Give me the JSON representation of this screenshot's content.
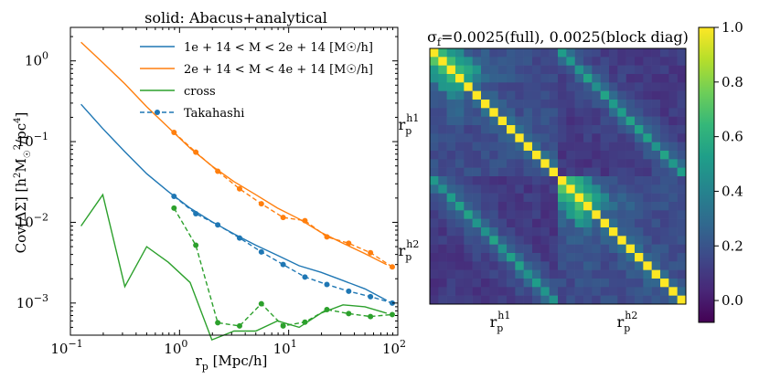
{
  "chart_data": [
    {
      "type": "line",
      "title": "solid: Abacus+analytical",
      "xlabel": "r_p [Mpc/h]",
      "ylabel": "Cov[ΔΣ] [h²M☉²/pc⁴]",
      "xscale": "log",
      "yscale": "log",
      "xlim": [
        0.1,
        100
      ],
      "ylim": [
        0.0004,
        2.6
      ],
      "x_ticks": [
        {
          "v": 0.1,
          "b": "10",
          "e": "−1"
        },
        {
          "v": 1,
          "b": "10",
          "e": "0"
        },
        {
          "v": 10,
          "b": "10",
          "e": "1"
        },
        {
          "v": 100,
          "b": "10",
          "e": "2"
        }
      ],
      "y_ticks": [
        {
          "v": 0.001,
          "b": "10",
          "e": "−3"
        },
        {
          "v": 0.01,
          "b": "10",
          "e": "−2"
        },
        {
          "v": 0.1,
          "b": "10",
          "e": "−1"
        },
        {
          "v": 1,
          "b": "10",
          "e": "0"
        }
      ],
      "legend": [
        {
          "label": "1e + 14 < M < 2e + 14 [M☉/h]",
          "color": "#1f77b4",
          "style": "solid"
        },
        {
          "label": "2e + 14 < M < 4e + 14 [M☉/h]",
          "color": "#ff7f0e",
          "style": "solid"
        },
        {
          "label": "cross",
          "color": "#2ca02c",
          "style": "solid"
        },
        {
          "label": "Takahashi",
          "color": "#1f77b4",
          "style": "dashed"
        }
      ],
      "series": [
        {
          "name": "bin1 analytical",
          "color": "#1f77b4",
          "style": "solid",
          "x": [
            0.125,
            0.198,
            0.315,
            0.5,
            0.79,
            1.25,
            1.98,
            3.15,
            5.0,
            7.9,
            12.5,
            19.8,
            31.5,
            50.0,
            79.0
          ],
          "y": [
            0.29,
            0.145,
            0.075,
            0.04,
            0.024,
            0.015,
            0.0102,
            0.0072,
            0.0052,
            0.0039,
            0.0029,
            0.0024,
            0.0019,
            0.0015,
            0.00108
          ]
        },
        {
          "name": "bin2 analytical",
          "color": "#ff7f0e",
          "style": "solid",
          "x": [
            0.125,
            0.198,
            0.315,
            0.5,
            0.79,
            1.25,
            1.98,
            3.15,
            5.0,
            7.9,
            12.5,
            19.8,
            31.5,
            50.0,
            79.0
          ],
          "y": [
            1.7,
            0.95,
            0.52,
            0.27,
            0.15,
            0.083,
            0.05,
            0.032,
            0.022,
            0.015,
            0.011,
            0.0075,
            0.0055,
            0.0041,
            0.003
          ]
        },
        {
          "name": "cross analytical",
          "color": "#2ca02c",
          "style": "solid",
          "x": [
            0.125,
            0.198,
            0.315,
            0.5,
            0.79,
            1.25,
            1.98,
            3.15,
            5.0,
            7.9,
            12.5,
            19.8,
            31.5,
            50.0,
            79.0
          ],
          "y": [
            0.009,
            0.022,
            0.0016,
            0.005,
            0.0032,
            0.0018,
            0.00035,
            0.00045,
            0.00045,
            0.0006,
            0.0005,
            0.00075,
            0.00095,
            0.0009,
            0.00075
          ]
        },
        {
          "name": "bin1 Takahashi",
          "color": "#1f77b4",
          "style": "dashed",
          "markers": true,
          "x": [
            0.89,
            1.41,
            2.24,
            3.55,
            5.62,
            8.9,
            14.1,
            22.4,
            35.5,
            56.2,
            89.0
          ],
          "y": [
            0.021,
            0.0128,
            0.0093,
            0.0064,
            0.0043,
            0.003,
            0.0021,
            0.0017,
            0.0014,
            0.0012,
            0.001
          ]
        },
        {
          "name": "bin2 Takahashi",
          "color": "#ff7f0e",
          "style": "dashed",
          "markers": true,
          "x": [
            0.89,
            1.41,
            2.24,
            3.55,
            5.62,
            8.9,
            14.1,
            22.4,
            35.5,
            56.2,
            89.0
          ],
          "y": [
            0.13,
            0.074,
            0.043,
            0.026,
            0.017,
            0.0115,
            0.0105,
            0.0066,
            0.0055,
            0.0042,
            0.0028
          ]
        },
        {
          "name": "cross Takahashi",
          "color": "#2ca02c",
          "style": "dashed",
          "markers": true,
          "x": [
            0.89,
            1.41,
            2.24,
            3.55,
            5.62,
            8.9,
            14.1,
            22.4,
            35.5,
            56.2,
            89.0
          ],
          "y": [
            0.015,
            0.0052,
            0.00057,
            0.00052,
            0.00098,
            0.00052,
            0.00058,
            0.00083,
            0.00074,
            0.00068,
            0.00072
          ]
        }
      ]
    },
    {
      "type": "heatmap",
      "title": "σ_f=0.0025(full), 0.0025(block diag)",
      "size": 30,
      "block": 15,
      "colorbar": {
        "min": -0.08,
        "max": 1.0,
        "ticks": [
          {
            "v": 0.0,
            "label": "0.0"
          },
          {
            "v": 0.2,
            "label": "0.2"
          },
          {
            "v": 0.4,
            "label": "0.4"
          },
          {
            "v": 0.6,
            "label": "0.6"
          },
          {
            "v": 0.8,
            "label": "0.8"
          },
          {
            "v": 1.0,
            "label": "1.0"
          }
        ]
      },
      "x_labels": [
        {
          "sym": "r",
          "sub": "p",
          "sup": "h1"
        },
        {
          "sym": "r",
          "sub": "p",
          "sup": "h2"
        }
      ],
      "y_labels": [
        {
          "sym": "r",
          "sub": "p",
          "sup": "h1"
        },
        {
          "sym": "r",
          "sub": "p",
          "sup": "h2"
        }
      ]
    }
  ],
  "colors": {
    "colormap": [
      "#440154",
      "#482878",
      "#3e4989",
      "#31688e",
      "#26828e",
      "#1f9e89",
      "#35b779",
      "#6ece58",
      "#b5de2b",
      "#fde725"
    ]
  }
}
